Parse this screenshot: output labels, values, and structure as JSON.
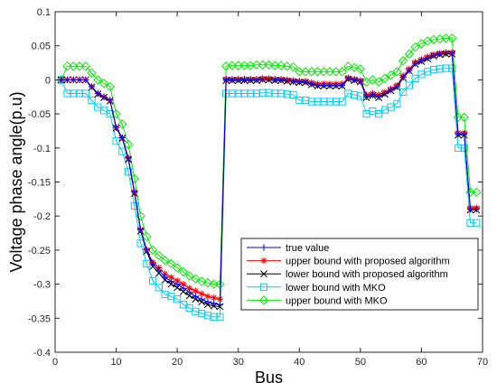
{
  "chart_data": {
    "type": "line",
    "title": "",
    "xlabel": "Bus",
    "ylabel": "Voltage phase angle(p.u)",
    "xlim": [
      0,
      70
    ],
    "ylim": [
      -0.4,
      0.1
    ],
    "xticks": [
      "0",
      "10",
      "20",
      "30",
      "40",
      "50",
      "60",
      "70"
    ],
    "yticks": [
      "-0.4",
      "-0.35",
      "-0.3",
      "-0.25",
      "-0.2",
      "-0.15",
      "-0.1",
      "-0.05",
      "0",
      "0.05",
      "0.1"
    ],
    "grid": false,
    "legend_position": "bottom-right",
    "x": [
      1,
      2,
      3,
      4,
      5,
      6,
      7,
      8,
      9,
      10,
      11,
      12,
      13,
      14,
      15,
      16,
      17,
      18,
      19,
      20,
      21,
      22,
      23,
      24,
      25,
      26,
      27,
      28,
      29,
      30,
      31,
      32,
      33,
      34,
      35,
      36,
      37,
      38,
      39,
      40,
      41,
      42,
      43,
      44,
      45,
      46,
      47,
      48,
      49,
      50,
      51,
      52,
      53,
      54,
      55,
      56,
      57,
      58,
      59,
      60,
      61,
      62,
      63,
      64,
      65,
      66,
      67,
      68,
      69
    ],
    "series": [
      {
        "name": "true value",
        "color": "#0000ff",
        "marker": "plus",
        "values": [
          0,
          0,
          0,
          0,
          0,
          -0.01,
          -0.02,
          -0.025,
          -0.03,
          -0.07,
          -0.085,
          -0.115,
          -0.165,
          -0.22,
          -0.25,
          -0.27,
          -0.28,
          -0.29,
          -0.296,
          -0.3,
          -0.306,
          -0.312,
          -0.318,
          -0.322,
          -0.326,
          -0.328,
          -0.33,
          0,
          0,
          0,
          0,
          0,
          0,
          0.001,
          0.001,
          0,
          0,
          -0.001,
          -0.002,
          -0.003,
          -0.003,
          -0.006,
          -0.008,
          -0.008,
          -0.008,
          -0.008,
          -0.008,
          0.002,
          0,
          -0.002,
          -0.025,
          -0.022,
          -0.025,
          -0.02,
          -0.015,
          -0.01,
          0.004,
          0.014,
          0.024,
          0.028,
          0.032,
          0.036,
          0.038,
          0.039,
          0.039,
          -0.08,
          -0.08,
          -0.19,
          -0.19
        ]
      },
      {
        "name": "upper bound with proposed algorithm",
        "color": "#ff0000",
        "marker": "star",
        "values": [
          0,
          0,
          0,
          0,
          0,
          -0.01,
          -0.02,
          -0.025,
          -0.03,
          -0.07,
          -0.085,
          -0.115,
          -0.165,
          -0.22,
          -0.25,
          -0.268,
          -0.276,
          -0.285,
          -0.29,
          -0.295,
          -0.3,
          -0.306,
          -0.31,
          -0.314,
          -0.318,
          -0.32,
          -0.322,
          0.001,
          0.001,
          0.001,
          0.001,
          0.001,
          0.001,
          0.002,
          0.002,
          0.001,
          0.001,
          0,
          -0.001,
          -0.002,
          -0.002,
          -0.004,
          -0.006,
          -0.006,
          -0.006,
          -0.006,
          -0.006,
          0.003,
          0.001,
          -0.001,
          -0.022,
          -0.02,
          -0.022,
          -0.018,
          -0.013,
          -0.008,
          0.006,
          0.016,
          0.026,
          0.03,
          0.034,
          0.037,
          0.039,
          0.04,
          0.04,
          -0.078,
          -0.078,
          -0.188,
          -0.188
        ]
      },
      {
        "name": "lower bound with proposed algorithm",
        "color": "#000000",
        "marker": "x",
        "values": [
          0,
          0,
          0,
          0,
          0,
          -0.011,
          -0.021,
          -0.026,
          -0.031,
          -0.071,
          -0.086,
          -0.117,
          -0.167,
          -0.222,
          -0.252,
          -0.274,
          -0.284,
          -0.294,
          -0.3,
          -0.305,
          -0.311,
          -0.317,
          -0.322,
          -0.326,
          -0.33,
          -0.332,
          -0.333,
          -0.001,
          -0.001,
          -0.001,
          -0.001,
          -0.001,
          -0.001,
          0,
          0,
          -0.001,
          -0.001,
          -0.002,
          -0.003,
          -0.004,
          -0.004,
          -0.007,
          -0.009,
          -0.009,
          -0.009,
          -0.009,
          -0.009,
          0.001,
          -0.001,
          -0.003,
          -0.026,
          -0.023,
          -0.026,
          -0.021,
          -0.016,
          -0.011,
          0.003,
          0.013,
          0.023,
          0.027,
          0.031,
          0.035,
          0.037,
          0.038,
          0.038,
          -0.081,
          -0.081,
          -0.191,
          -0.191
        ]
      },
      {
        "name": "lower bound with MKO",
        "color": "#00ccff",
        "marker": "square",
        "values": [
          0,
          -0.02,
          -0.02,
          -0.02,
          -0.02,
          -0.03,
          -0.04,
          -0.045,
          -0.05,
          -0.09,
          -0.105,
          -0.135,
          -0.185,
          -0.24,
          -0.27,
          -0.295,
          -0.305,
          -0.315,
          -0.318,
          -0.322,
          -0.33,
          -0.335,
          -0.34,
          -0.343,
          -0.346,
          -0.348,
          -0.348,
          -0.02,
          -0.02,
          -0.02,
          -0.02,
          -0.02,
          -0.02,
          -0.019,
          -0.019,
          -0.02,
          -0.02,
          -0.021,
          -0.022,
          -0.03,
          -0.03,
          -0.032,
          -0.032,
          -0.032,
          -0.032,
          -0.032,
          -0.032,
          -0.02,
          -0.022,
          -0.024,
          -0.05,
          -0.046,
          -0.05,
          -0.044,
          -0.04,
          -0.035,
          -0.018,
          -0.008,
          0.002,
          0.008,
          0.012,
          0.015,
          0.016,
          0.017,
          0.017,
          -0.1,
          -0.1,
          -0.21,
          -0.21
        ]
      },
      {
        "name": "upper bound with MKO",
        "color": "#00ee00",
        "marker": "diamond",
        "values": [
          0,
          0.02,
          0.02,
          0.02,
          0.02,
          0.01,
          0,
          -0.005,
          -0.01,
          -0.05,
          -0.065,
          -0.095,
          -0.145,
          -0.2,
          -0.23,
          -0.25,
          -0.258,
          -0.265,
          -0.27,
          -0.276,
          -0.282,
          -0.288,
          -0.292,
          -0.296,
          -0.298,
          -0.3,
          -0.3,
          0.02,
          0.021,
          0.021,
          0.021,
          0.021,
          0.022,
          0.022,
          0.022,
          0.021,
          0.021,
          0.02,
          0.019,
          0.012,
          0.012,
          0.012,
          0.012,
          0.012,
          0.012,
          0.012,
          0.012,
          0.02,
          0.018,
          0.016,
          -0.003,
          0,
          -0.003,
          0.002,
          0.007,
          0.012,
          0.028,
          0.038,
          0.048,
          0.053,
          0.057,
          0.059,
          0.06,
          0.061,
          0.061,
          -0.055,
          -0.055,
          -0.165,
          -0.165
        ]
      }
    ]
  }
}
